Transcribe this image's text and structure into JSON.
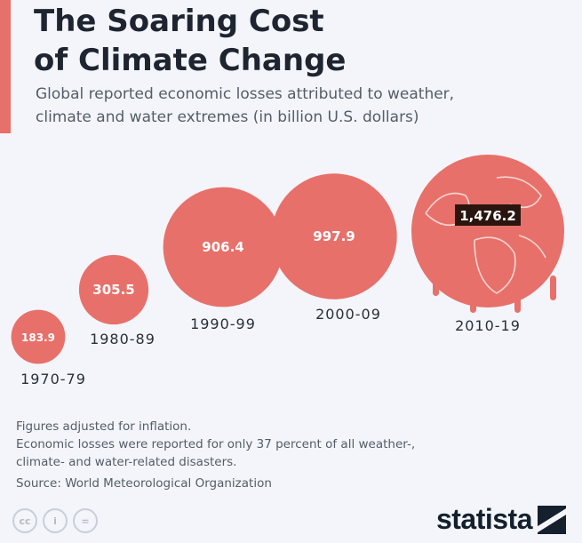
{
  "header": {
    "title_line1": "The Soaring Cost",
    "title_line2": "of Climate Change",
    "subtitle_line1": "Global reported economic losses attributed to weather,",
    "subtitle_line2": "climate and water extremes (in billion U.S. dollars)"
  },
  "chart_data": {
    "type": "bubble",
    "categories": [
      "1970-79",
      "1980-89",
      "1990-99",
      "2000-09",
      "2010-19"
    ],
    "values": [
      183.9,
      305.5,
      906.4,
      997.9,
      1476.2
    ],
    "value_labels": [
      "183.9",
      "305.5",
      "906.4",
      "997.9",
      "1,476.2"
    ],
    "bubble_color": "#e8706a",
    "highlight_label_bg": "#2a160f",
    "last_bubble_icon": "globe-icon"
  },
  "notes": {
    "line1": "Figures adjusted for inflation.",
    "line2": "Economic losses were reported for only 37 percent of all weather-,",
    "line3": "climate- and water-related disasters.",
    "source": "Source: World Meteorological Organization"
  },
  "footer": {
    "license_icons": [
      "cc-icon",
      "person-icon",
      "equals-icon"
    ],
    "license_glyphs": [
      "cc",
      "i",
      "="
    ],
    "brand": "statista"
  }
}
